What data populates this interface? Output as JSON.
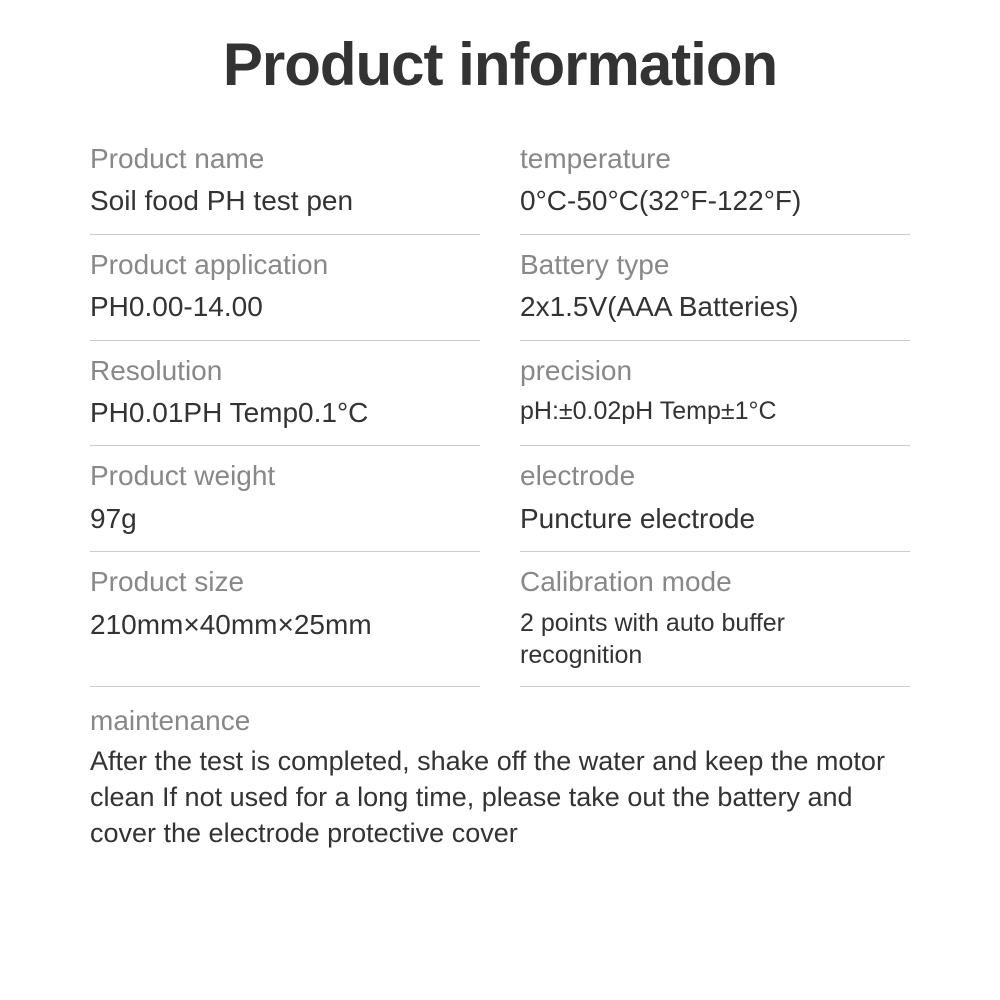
{
  "title": "Product information",
  "specs": {
    "left": [
      {
        "label": "Product name",
        "value": "Soil food PH test pen"
      },
      {
        "label": "Product application",
        "value": "PH0.00-14.00"
      },
      {
        "label": "Resolution",
        "value": "PH0.01PH Temp0.1°C"
      },
      {
        "label": "Product weight",
        "value": "97g"
      },
      {
        "label": "Product size",
        "value": "210mm×40mm×25mm"
      }
    ],
    "right": [
      {
        "label": "temperature",
        "value": "0°C-50°C(32°F-122°F)"
      },
      {
        "label": "Battery type",
        "value": "2x1.5V(AAA Batteries)"
      },
      {
        "label": "precision",
        "value": "pH:±0.02pH Temp±1°C",
        "small": true
      },
      {
        "label": "electrode",
        "value": "Puncture electrode"
      },
      {
        "label": "Calibration mode",
        "value": "2 points with auto buffer recognition",
        "small": true
      }
    ]
  },
  "maintenance": {
    "label": "maintenance",
    "text": "After the test is completed, shake off the water and keep the motor clean If not used for a long time, please take out the battery and cover the electrode protective cover"
  },
  "colors": {
    "title_color": "#333333",
    "label_color": "#888888",
    "value_color": "#333333",
    "divider_color": "#cccccc",
    "background": "#ffffff"
  },
  "typography": {
    "title_fontsize": 60,
    "label_fontsize": 28,
    "value_fontsize": 28,
    "value_small_fontsize": 25,
    "maintenance_text_fontsize": 27
  }
}
